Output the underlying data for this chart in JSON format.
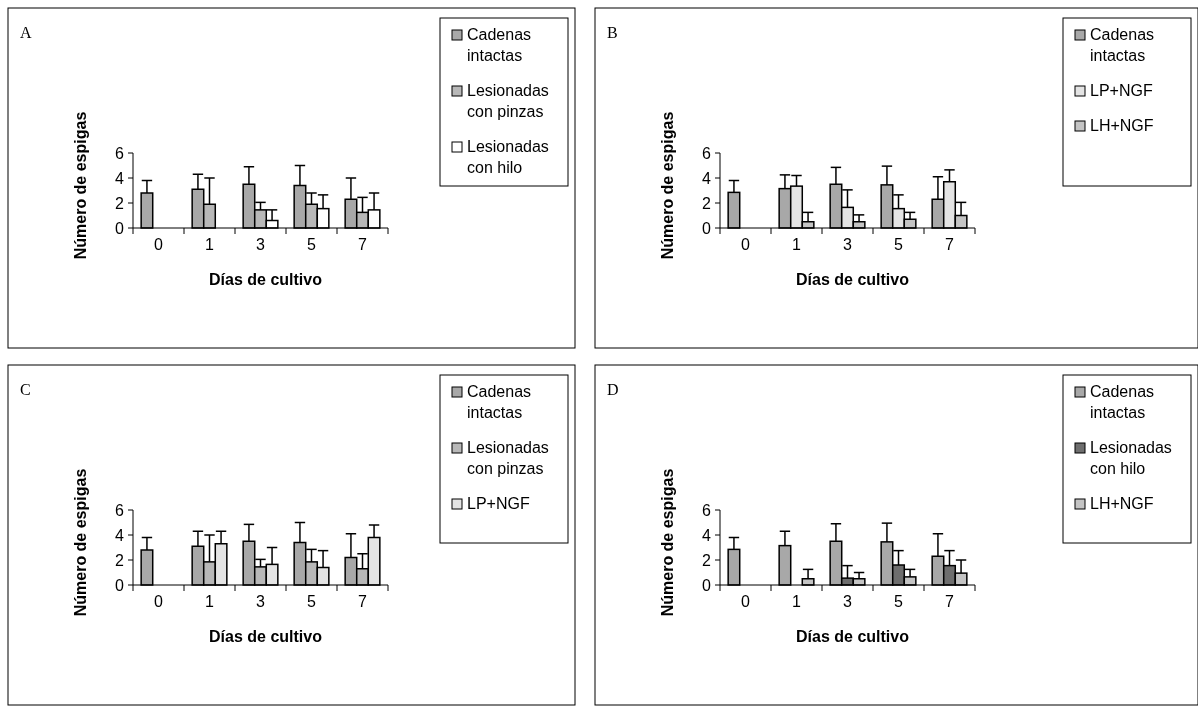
{
  "chart_data": [
    {
      "type": "bar",
      "title": "A",
      "xlabel": "Días de cultivo",
      "ylabel": "Número de espigas",
      "categories": [
        "0",
        "1",
        "3",
        "5",
        "7"
      ],
      "ylim": [
        0,
        6
      ],
      "yticks": [
        0,
        2,
        4,
        6
      ],
      "legend": "top right",
      "series": [
        {
          "name": "Cadenas intactas",
          "color": "#a8a8a8",
          "values": [
            2.8,
            3.1,
            3.5,
            3.4,
            2.3
          ],
          "errors": [
            [
              2.8,
              3.8
            ],
            [
              3.1,
              4.3
            ],
            [
              3.5,
              4.9
            ],
            [
              3.4,
              5.0
            ],
            [
              2.3,
              4.0
            ]
          ]
        },
        {
          "name": "Lesionadas con pinzas",
          "color": "#b8b8b8",
          "values": [
            0,
            1.9,
            1.45,
            1.9,
            1.25
          ],
          "errors": [
            null,
            [
              1.9,
              4.0
            ],
            [
              1.45,
              2.05
            ],
            [
              1.9,
              2.8
            ],
            [
              1.25,
              2.45
            ]
          ]
        },
        {
          "name": "Lesionadas con hilo",
          "color": "#ffffff",
          "values": [
            0,
            0,
            0.6,
            1.55,
            1.45
          ],
          "errors": [
            null,
            null,
            [
              0.6,
              1.45
            ],
            [
              1.55,
              2.65
            ],
            [
              1.45,
              2.8
            ]
          ]
        }
      ]
    },
    {
      "type": "bar",
      "title": "B",
      "xlabel": "Días de cultivo",
      "ylabel": "Número de espigas",
      "categories": [
        "0",
        "1",
        "3",
        "5",
        "7"
      ],
      "ylim": [
        0,
        6
      ],
      "yticks": [
        0,
        2,
        4,
        6
      ],
      "legend": "top right",
      "series": [
        {
          "name": "Cadenas intactas",
          "color": "#a8a8a8",
          "values": [
            2.85,
            3.15,
            3.5,
            3.45,
            2.3
          ],
          "errors": [
            [
              2.85,
              3.8
            ],
            [
              3.15,
              4.25
            ],
            [
              3.5,
              4.85
            ],
            [
              3.45,
              4.95
            ],
            [
              2.3,
              4.1
            ]
          ]
        },
        {
          "name": "LP+NGF",
          "color": "#e4e4e4",
          "values": [
            0,
            3.35,
            1.65,
            1.55,
            3.7
          ],
          "errors": [
            null,
            [
              3.35,
              4.2
            ],
            [
              1.65,
              3.05
            ],
            [
              1.55,
              2.65
            ],
            [
              3.7,
              4.65
            ]
          ]
        },
        {
          "name": "LH+NGF",
          "color": "#c4c4c4",
          "values": [
            0,
            0.5,
            0.5,
            0.7,
            1.0
          ],
          "errors": [
            null,
            [
              0.5,
              1.25
            ],
            [
              0.5,
              1.05
            ],
            [
              0.7,
              1.25
            ],
            [
              1.0,
              2.05
            ]
          ]
        }
      ]
    },
    {
      "type": "bar",
      "title": "C",
      "xlabel": "Días de cultivo",
      "ylabel": "Número de espigas",
      "categories": [
        "0",
        "1",
        "3",
        "5",
        "7"
      ],
      "ylim": [
        0,
        6
      ],
      "yticks": [
        0,
        2,
        4,
        6
      ],
      "legend": "top right",
      "series": [
        {
          "name": "Cadenas intactas",
          "color": "#a8a8a8",
          "values": [
            2.8,
            3.1,
            3.5,
            3.4,
            2.2
          ],
          "errors": [
            [
              2.8,
              3.8
            ],
            [
              3.1,
              4.3
            ],
            [
              3.5,
              4.85
            ],
            [
              3.4,
              5.0
            ],
            [
              2.2,
              4.1
            ]
          ]
        },
        {
          "name": "Lesionadas con pinzas",
          "color": "#b8b8b8",
          "values": [
            0,
            1.85,
            1.45,
            1.85,
            1.3
          ],
          "errors": [
            null,
            [
              1.85,
              4.0
            ],
            [
              1.45,
              2.05
            ],
            [
              1.85,
              2.85
            ],
            [
              1.3,
              2.5
            ]
          ]
        },
        {
          "name": "LP+NGF",
          "color": "#e4e4e4",
          "values": [
            0,
            3.3,
            1.65,
            1.4,
            3.8
          ],
          "errors": [
            null,
            [
              3.3,
              4.3
            ],
            [
              1.65,
              3.0
            ],
            [
              1.4,
              2.75
            ],
            [
              3.8,
              4.8
            ]
          ]
        }
      ]
    },
    {
      "type": "bar",
      "title": "D",
      "xlabel": "Días de cultivo",
      "ylabel": "Número de espigas",
      "categories": [
        "0",
        "1",
        "3",
        "5",
        "7"
      ],
      "ylim": [
        0,
        6
      ],
      "yticks": [
        0,
        2,
        4,
        6
      ],
      "legend": "top right",
      "series": [
        {
          "name": "Cadenas intactas",
          "color": "#a8a8a8",
          "values": [
            2.85,
            3.15,
            3.5,
            3.45,
            2.3
          ],
          "errors": [
            [
              2.85,
              3.8
            ],
            [
              3.15,
              4.3
            ],
            [
              3.5,
              4.9
            ],
            [
              3.45,
              4.95
            ],
            [
              2.3,
              4.1
            ]
          ]
        },
        {
          "name": "Lesionadas con hilo",
          "color": "#6e6e6e",
          "values": [
            null,
            null,
            0.55,
            1.6,
            1.55
          ],
          "errors": [
            null,
            null,
            [
              0.55,
              1.55
            ],
            [
              1.6,
              2.75
            ],
            [
              1.55,
              2.75
            ]
          ]
        },
        {
          "name": "LH+NGF",
          "color": "#c4c4c4",
          "values": [
            null,
            0.5,
            0.5,
            0.65,
            0.95
          ],
          "errors": [
            null,
            [
              0.5,
              1.25
            ],
            [
              0.5,
              1.0
            ],
            [
              0.65,
              1.25
            ],
            [
              0.95,
              2.0
            ]
          ]
        }
      ]
    }
  ]
}
